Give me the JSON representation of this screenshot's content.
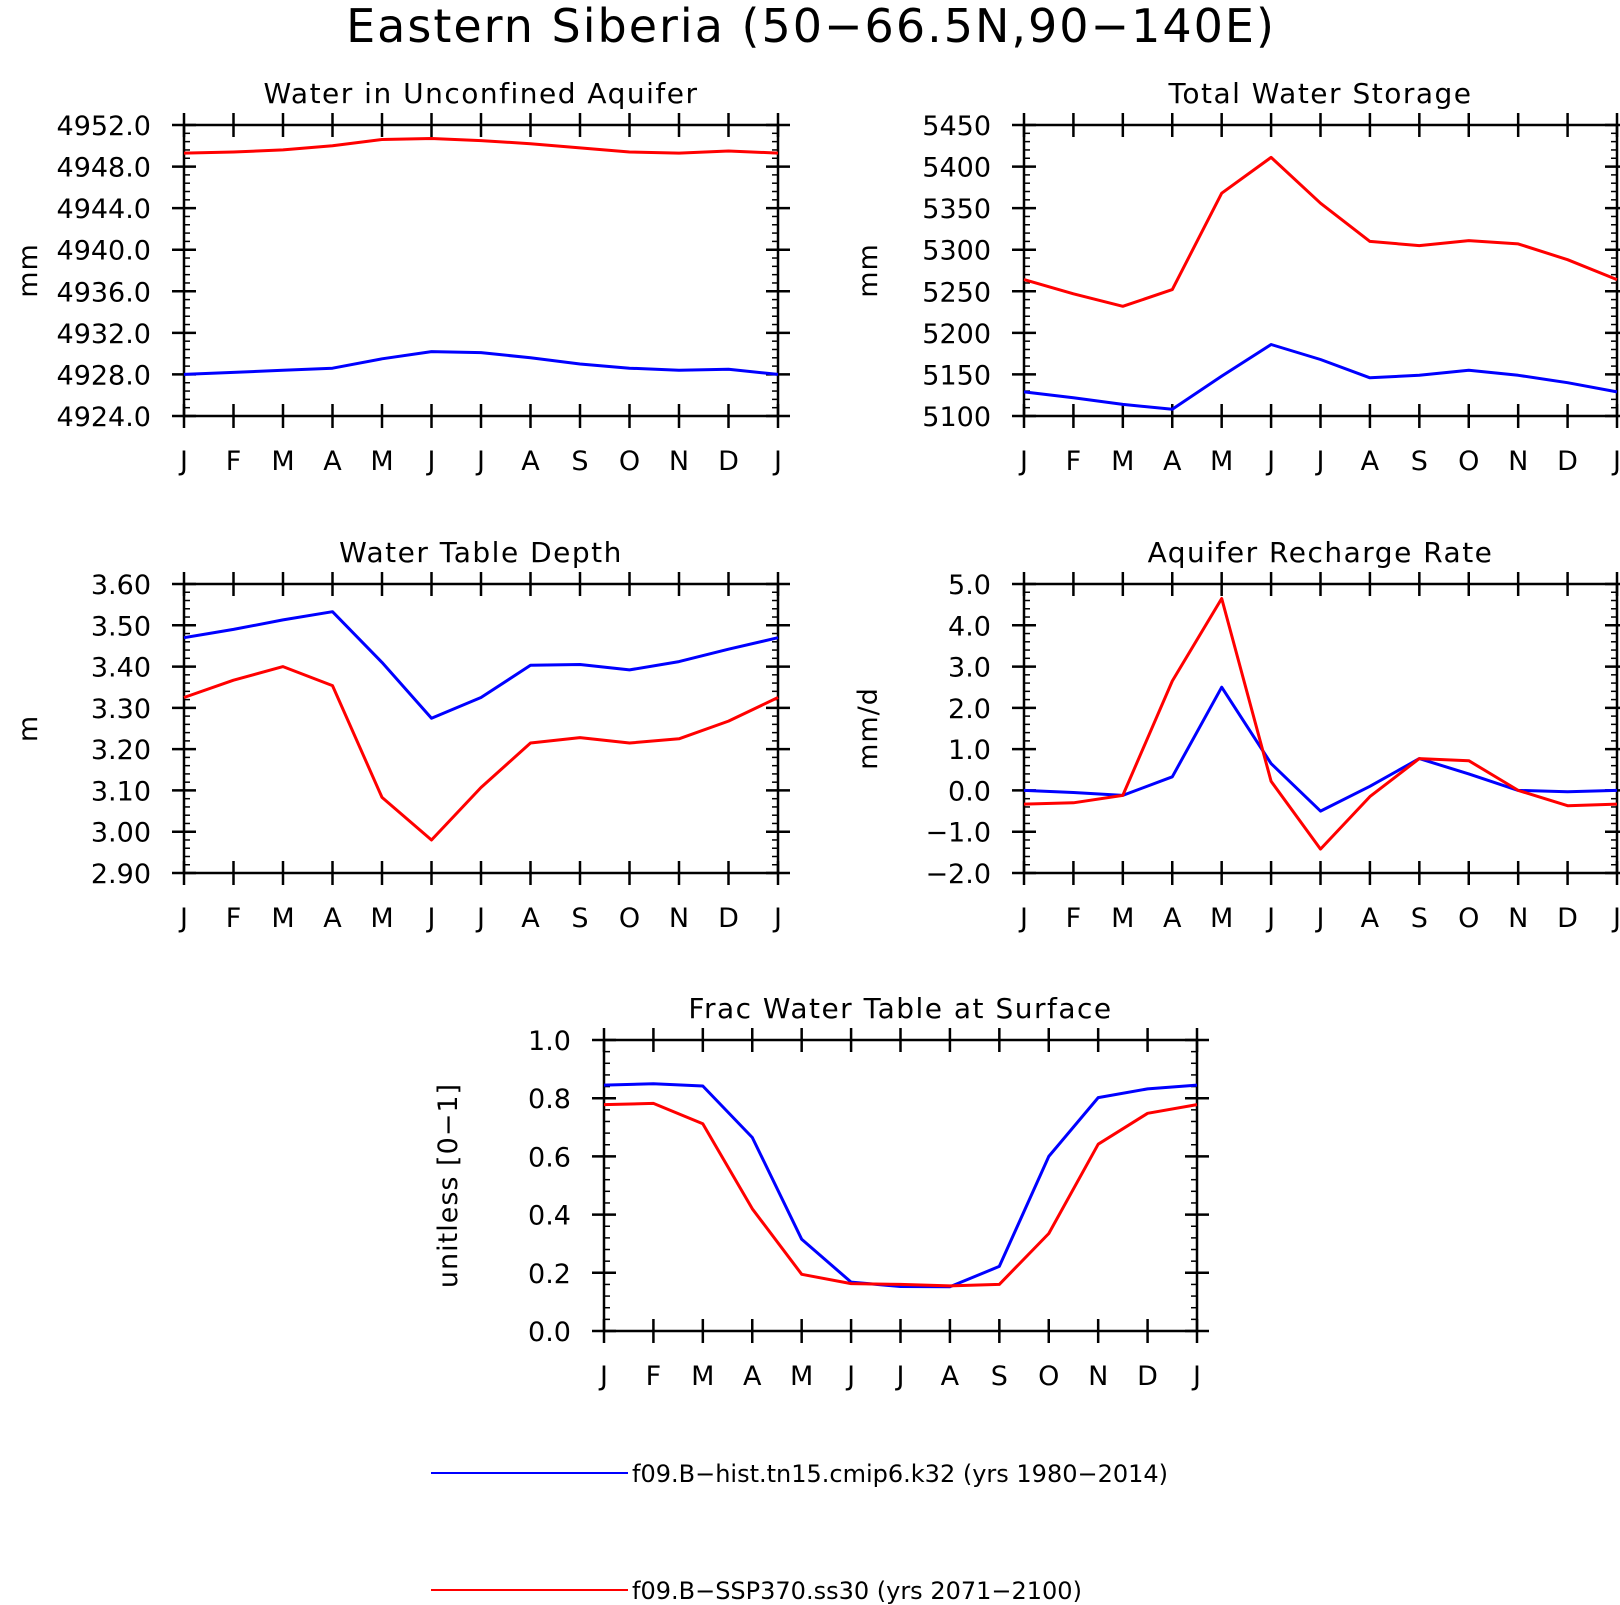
{
  "figure_title": "Eastern Siberia (50−66.5N,90−140E)",
  "colors": {
    "hist": "#0000ff",
    "ssp": "#ff0000"
  },
  "legend": [
    {
      "label": "f09.B−hist.tn15.cmip6.k32 (yrs 1980−2014)",
      "color": "#0000ff"
    },
    {
      "label": "f09.B−SSP370.ss30 (yrs 2071−2100)",
      "color": "#ff0000"
    }
  ],
  "chart_data": [
    {
      "type": "line",
      "title": "Water in Unconfined Aquifer",
      "ylabel": "mm",
      "xlabel": "",
      "ylim": [
        4924,
        4952
      ],
      "yticks": [
        4924,
        4928,
        4932,
        4936,
        4940,
        4944,
        4948,
        4952
      ],
      "ytick_labels": [
        "4924.0",
        "4928.0",
        "4932.0",
        "4936.0",
        "4940.0",
        "4944.0",
        "4948.0",
        "4952.0"
      ],
      "yminor": 0.8,
      "categories": [
        "J",
        "F",
        "M",
        "A",
        "M",
        "J",
        "J",
        "A",
        "S",
        "O",
        "N",
        "D",
        "J"
      ],
      "series": [
        {
          "name": "f09.B−hist.tn15.cmip6.k32 (yrs 1980−2014)",
          "values": [
            4928.0,
            4928.2,
            4928.4,
            4928.6,
            4929.5,
            4930.2,
            4930.1,
            4929.6,
            4929.0,
            4928.6,
            4928.4,
            4928.5,
            4928.0
          ]
        },
        {
          "name": "f09.B−SSP370.ss30 (yrs 2071−2100)",
          "values": [
            4949.3,
            4949.4,
            4949.6,
            4950.0,
            4950.6,
            4950.7,
            4950.5,
            4950.2,
            4949.8,
            4949.4,
            4949.3,
            4949.5,
            4949.3
          ]
        }
      ]
    },
    {
      "type": "line",
      "title": "Total Water Storage",
      "ylabel": "mm",
      "xlabel": "",
      "ylim": [
        5100,
        5450
      ],
      "yticks": [
        5100,
        5150,
        5200,
        5250,
        5300,
        5350,
        5400,
        5450
      ],
      "ytick_labels": [
        "5100",
        "5150",
        "5200",
        "5250",
        "5300",
        "5350",
        "5400",
        "5450"
      ],
      "yminor": 10,
      "categories": [
        "J",
        "F",
        "M",
        "A",
        "M",
        "J",
        "J",
        "A",
        "S",
        "O",
        "N",
        "D",
        "J"
      ],
      "series": [
        {
          "name": "f09.B−hist.tn15.cmip6.k32 (yrs 1980−2014)",
          "values": [
            5129,
            5122,
            5114,
            5108,
            5148,
            5186,
            5168,
            5146,
            5149,
            5155,
            5149,
            5140,
            5129
          ]
        },
        {
          "name": "f09.B−SSP370.ss30 (yrs 2071−2100)",
          "values": [
            5264,
            5247,
            5232,
            5252,
            5368,
            5411,
            5356,
            5310,
            5305,
            5311,
            5307,
            5288,
            5264
          ]
        }
      ]
    },
    {
      "type": "line",
      "title": "Water Table Depth",
      "ylabel": "m",
      "xlabel": "",
      "ylim": [
        2.9,
        3.6
      ],
      "yticks": [
        2.9,
        3.0,
        3.1,
        3.2,
        3.3,
        3.4,
        3.5,
        3.6
      ],
      "ytick_labels": [
        "2.90",
        "3.00",
        "3.10",
        "3.20",
        "3.30",
        "3.40",
        "3.50",
        "3.60"
      ],
      "yminor": 0.02,
      "categories": [
        "J",
        "F",
        "M",
        "A",
        "M",
        "J",
        "J",
        "A",
        "S",
        "O",
        "N",
        "D",
        "J"
      ],
      "series": [
        {
          "name": "f09.B−hist.tn15.cmip6.k32 (yrs 1980−2014)",
          "values": [
            3.47,
            3.49,
            3.513,
            3.533,
            3.41,
            3.275,
            3.325,
            3.403,
            3.405,
            3.392,
            3.412,
            3.442,
            3.47
          ]
        },
        {
          "name": "f09.B−SSP370.ss30 (yrs 2071−2100)",
          "values": [
            3.325,
            3.367,
            3.4,
            3.354,
            3.083,
            2.98,
            3.107,
            3.215,
            3.228,
            3.215,
            3.225,
            3.268,
            3.325
          ]
        }
      ]
    },
    {
      "type": "line",
      "title": "Aquifer Recharge Rate",
      "ylabel": "mm/d",
      "xlabel": "",
      "ylim": [
        -2.0,
        5.0
      ],
      "yticks": [
        -2.0,
        -1.0,
        0.0,
        1.0,
        2.0,
        3.0,
        4.0,
        5.0
      ],
      "ytick_labels": [
        "−2.0",
        "−1.0",
        "0.0",
        "1.0",
        "2.0",
        "3.0",
        "4.0",
        "5.0"
      ],
      "yminor": 0.2,
      "categories": [
        "J",
        "F",
        "M",
        "A",
        "M",
        "J",
        "J",
        "A",
        "S",
        "O",
        "N",
        "D",
        "J"
      ],
      "series": [
        {
          "name": "f09.B−hist.tn15.cmip6.k32 (yrs 1980−2014)",
          "values": [
            0.0,
            -0.05,
            -0.12,
            0.33,
            2.5,
            0.65,
            -0.5,
            0.1,
            0.77,
            0.4,
            0.0,
            -0.03,
            0.0
          ]
        },
        {
          "name": "f09.B−SSP370.ss30 (yrs 2071−2100)",
          "values": [
            -0.33,
            -0.3,
            -0.12,
            2.65,
            4.65,
            0.22,
            -1.42,
            -0.15,
            0.77,
            0.72,
            0.0,
            -0.37,
            -0.33
          ]
        }
      ]
    },
    {
      "type": "line",
      "title": "Frac Water Table at Surface",
      "ylabel": "unitless [0−1]",
      "xlabel": "",
      "ylim": [
        0.0,
        1.0
      ],
      "yticks": [
        0.0,
        0.2,
        0.4,
        0.6,
        0.8,
        1.0
      ],
      "ytick_labels": [
        "0.0",
        "0.2",
        "0.4",
        "0.6",
        "0.8",
        "1.0"
      ],
      "yminor": 0.04,
      "categories": [
        "J",
        "F",
        "M",
        "A",
        "M",
        "J",
        "J",
        "A",
        "S",
        "O",
        "N",
        "D",
        "J"
      ],
      "series": [
        {
          "name": "f09.B−hist.tn15.cmip6.k32 (yrs 1980−2014)",
          "values": [
            0.845,
            0.85,
            0.842,
            0.665,
            0.315,
            0.168,
            0.153,
            0.152,
            0.222,
            0.6,
            0.802,
            0.832,
            0.845
          ]
        },
        {
          "name": "f09.B−SSP370.ss30 (yrs 2071−2100)",
          "values": [
            0.778,
            0.782,
            0.712,
            0.42,
            0.195,
            0.163,
            0.16,
            0.155,
            0.16,
            0.335,
            0.642,
            0.748,
            0.778
          ]
        }
      ]
    }
  ]
}
